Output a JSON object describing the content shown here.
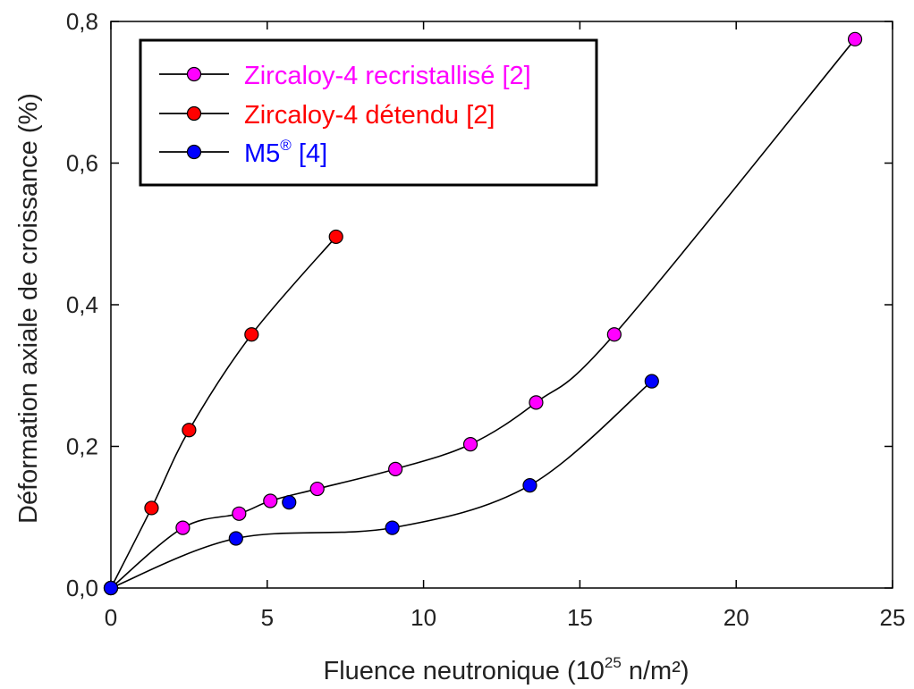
{
  "chart_data": {
    "type": "line",
    "xlabel": "Fluence neutronique (10",
    "xlabel_sup": "25",
    "xlabel_end": " n/m²)",
    "ylabel": "Déformation axiale de croissance (%)",
    "xlim": [
      0,
      25
    ],
    "ylim": [
      0,
      0.8
    ],
    "x_ticks": [
      0,
      5,
      10,
      15,
      20,
      25
    ],
    "x_tick_labels": [
      "0",
      "5",
      "10",
      "15",
      "20",
      "25"
    ],
    "y_ticks": [
      0,
      0.2,
      0.4,
      0.6,
      0.8
    ],
    "y_tick_labels": [
      "0,0",
      "0,2",
      "0,4",
      "0,6",
      "0,8"
    ],
    "grid": false,
    "legend_position": "top-left",
    "series": [
      {
        "name": "Zircaloy-4 recristallisé [2]",
        "color": "#ff00ff",
        "x": [
          0,
          2.3,
          4.1,
          5.1,
          6.6,
          9.1,
          11.5,
          13.6,
          16.1,
          23.8
        ],
        "y": [
          0,
          0.085,
          0.105,
          0.123,
          0.14,
          0.168,
          0.203,
          0.262,
          0.358,
          0.775
        ]
      },
      {
        "name": "Zircaloy-4 détendu [2]",
        "color": "#ff0000",
        "x": [
          0,
          1.3,
          2.5,
          4.5,
          7.2
        ],
        "y": [
          0,
          0.113,
          0.223,
          0.358,
          0.496
        ]
      },
      {
        "name": "M5",
        "name_sup": "®",
        "name_end": " [4]",
        "color": "#0000ff",
        "x": [
          0,
          4.0,
          5.7,
          9.0,
          13.4,
          17.3
        ],
        "y": [
          0,
          0.07,
          0.121,
          0.085,
          0.145,
          0.292
        ]
      }
    ]
  }
}
